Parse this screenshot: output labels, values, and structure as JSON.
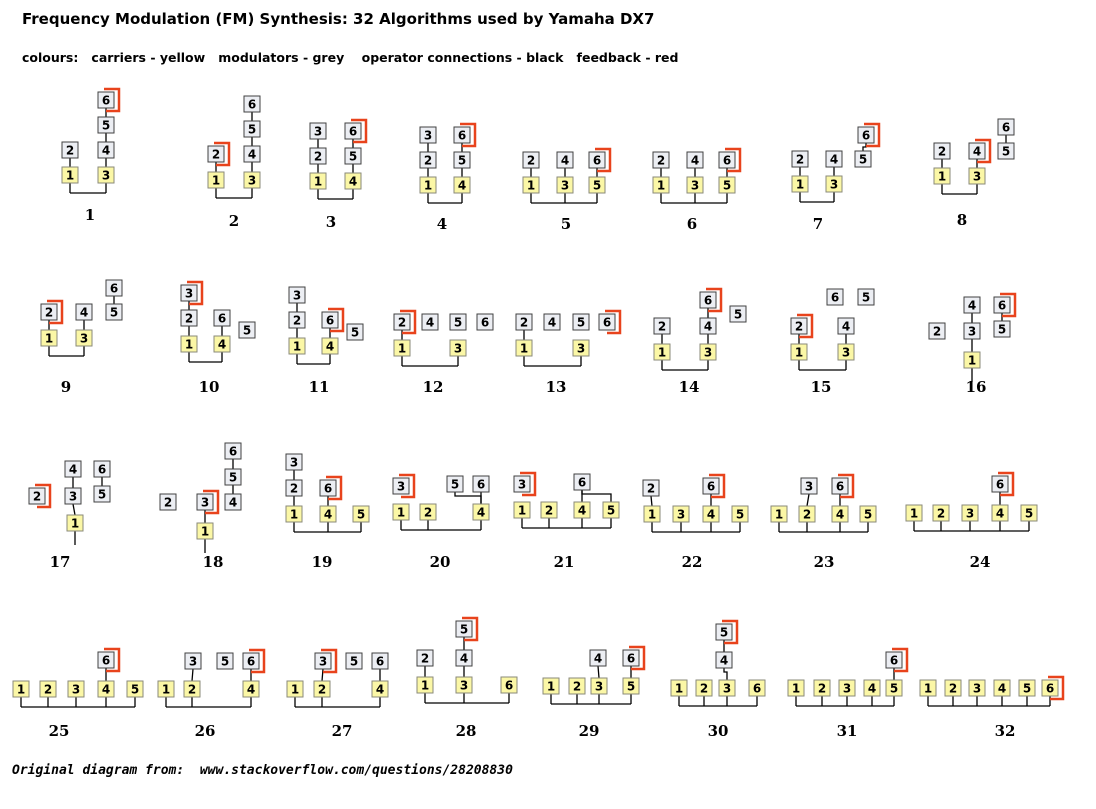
{
  "title": "Frequency Modulation (FM) Synthesis: 32 Algorithms used by Yamaha DX7",
  "legend": "colours:   carriers - yellow   modulators - grey    operator connections - black   feedback - red",
  "credit": "Original diagram from:  www.stackoverflow.com/questions/28208830",
  "colors": {
    "carrier": "#fbf7a6",
    "modulator": "#eceef3",
    "connection": "#000000",
    "feedback": "#e8431c"
  },
  "algorithms": [
    {
      "label": "1",
      "carriers": [
        "1",
        "3"
      ],
      "modulators": [
        "2",
        "4",
        "5",
        "6"
      ],
      "feedback_operator": "6"
    },
    {
      "label": "2",
      "carriers": [
        "1",
        "3"
      ],
      "modulators": [
        "2",
        "4",
        "5",
        "6"
      ],
      "feedback_operator": "2"
    },
    {
      "label": "3",
      "carriers": [
        "1",
        "4"
      ],
      "modulators": [
        "2",
        "3",
        "5",
        "6"
      ],
      "feedback_operator": "6"
    },
    {
      "label": "4",
      "carriers": [
        "1",
        "4"
      ],
      "modulators": [
        "2",
        "3",
        "5",
        "6"
      ],
      "feedback_operator": "6"
    },
    {
      "label": "5",
      "carriers": [
        "1",
        "3",
        "5"
      ],
      "modulators": [
        "2",
        "4",
        "6"
      ],
      "feedback_operator": "6"
    },
    {
      "label": "6",
      "carriers": [
        "1",
        "3",
        "5"
      ],
      "modulators": [
        "2",
        "4",
        "6"
      ],
      "feedback_operator": "6"
    },
    {
      "label": "7",
      "carriers": [
        "1",
        "3"
      ],
      "modulators": [
        "2",
        "4",
        "5",
        "6"
      ],
      "feedback_operator": "6"
    },
    {
      "label": "8",
      "carriers": [
        "1",
        "3"
      ],
      "modulators": [
        "2",
        "4",
        "5",
        "6"
      ],
      "feedback_operator": "4"
    },
    {
      "label": "9",
      "carriers": [
        "1",
        "3"
      ],
      "modulators": [
        "2",
        "4",
        "5",
        "6"
      ],
      "feedback_operator": "2"
    },
    {
      "label": "10",
      "carriers": [
        "1",
        "4"
      ],
      "modulators": [
        "2",
        "3",
        "5",
        "6"
      ],
      "feedback_operator": "3"
    },
    {
      "label": "11",
      "carriers": [
        "1",
        "4"
      ],
      "modulators": [
        "2",
        "3",
        "5",
        "6"
      ],
      "feedback_operator": "6"
    },
    {
      "label": "12",
      "carriers": [
        "1",
        "3"
      ],
      "modulators": [
        "2",
        "4",
        "5",
        "6"
      ],
      "feedback_operator": "2"
    },
    {
      "label": "13",
      "carriers": [
        "1",
        "3"
      ],
      "modulators": [
        "2",
        "4",
        "5",
        "6"
      ],
      "feedback_operator": "6"
    },
    {
      "label": "14",
      "carriers": [
        "1",
        "3"
      ],
      "modulators": [
        "2",
        "4",
        "5",
        "6"
      ],
      "feedback_operator": "6"
    },
    {
      "label": "15",
      "carriers": [
        "1",
        "3"
      ],
      "modulators": [
        "2",
        "4",
        "5",
        "6"
      ],
      "feedback_operator": "2"
    },
    {
      "label": "16",
      "carriers": [
        "1"
      ],
      "modulators": [
        "2",
        "3",
        "4",
        "5",
        "6"
      ],
      "feedback_operator": "6"
    },
    {
      "label": "17",
      "carriers": [
        "1"
      ],
      "modulators": [
        "2",
        "3",
        "4",
        "5",
        "6"
      ],
      "feedback_operator": "2"
    },
    {
      "label": "18",
      "carriers": [
        "1"
      ],
      "modulators": [
        "2",
        "3",
        "4",
        "5",
        "6"
      ],
      "feedback_operator": "3"
    },
    {
      "label": "19",
      "carriers": [
        "1",
        "4",
        "5"
      ],
      "modulators": [
        "2",
        "3",
        "6"
      ],
      "feedback_operator": "6"
    },
    {
      "label": "20",
      "carriers": [
        "1",
        "2",
        "4"
      ],
      "modulators": [
        "3",
        "5",
        "6"
      ],
      "feedback_operator": "3"
    },
    {
      "label": "21",
      "carriers": [
        "1",
        "2",
        "4",
        "5"
      ],
      "modulators": [
        "3",
        "6"
      ],
      "feedback_operator": "3"
    },
    {
      "label": "22",
      "carriers": [
        "1",
        "3",
        "4",
        "5"
      ],
      "modulators": [
        "2",
        "6"
      ],
      "feedback_operator": "6"
    },
    {
      "label": "23",
      "carriers": [
        "1",
        "2",
        "4",
        "5"
      ],
      "modulators": [
        "3",
        "6"
      ],
      "feedback_operator": "6"
    },
    {
      "label": "24",
      "carriers": [
        "1",
        "2",
        "3",
        "4",
        "5"
      ],
      "modulators": [
        "6"
      ],
      "feedback_operator": "6"
    },
    {
      "label": "25",
      "carriers": [
        "1",
        "2",
        "3",
        "4",
        "5"
      ],
      "modulators": [
        "6"
      ],
      "feedback_operator": "6"
    },
    {
      "label": "26",
      "carriers": [
        "1",
        "2",
        "4"
      ],
      "modulators": [
        "3",
        "5",
        "6"
      ],
      "feedback_operator": "6"
    },
    {
      "label": "27",
      "carriers": [
        "1",
        "2",
        "4"
      ],
      "modulators": [
        "3",
        "5",
        "6"
      ],
      "feedback_operator": "3"
    },
    {
      "label": "28",
      "carriers": [
        "1",
        "3",
        "6"
      ],
      "modulators": [
        "2",
        "4",
        "5"
      ],
      "feedback_operator": "5"
    },
    {
      "label": "29",
      "carriers": [
        "1",
        "2",
        "3",
        "5"
      ],
      "modulators": [
        "4",
        "6"
      ],
      "feedback_operator": "6"
    },
    {
      "label": "30",
      "carriers": [
        "1",
        "2",
        "3",
        "6"
      ],
      "modulators": [
        "4",
        "5"
      ],
      "feedback_operator": "5"
    },
    {
      "label": "31",
      "carriers": [
        "1",
        "2",
        "3",
        "4",
        "5"
      ],
      "modulators": [
        "6"
      ],
      "feedback_operator": "6"
    },
    {
      "label": "32",
      "carriers": [
        "1",
        "2",
        "3",
        "4",
        "5",
        "6"
      ],
      "modulators": [],
      "feedback_operator": "6"
    }
  ]
}
